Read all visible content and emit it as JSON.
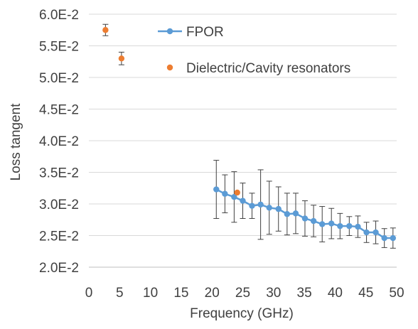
{
  "chart_data": {
    "type": "scatter",
    "title": "",
    "xlabel": "Frequency (GHz)",
    "ylabel": "Loss tangent",
    "xlim": [
      0,
      50
    ],
    "ylim": [
      0.02,
      0.06
    ],
    "x_ticks": [
      "0",
      "5",
      "10",
      "15",
      "20",
      "25",
      "30",
      "35",
      "40",
      "45",
      "50"
    ],
    "x_tick_values": [
      0,
      5,
      10,
      15,
      20,
      25,
      30,
      35,
      40,
      45,
      50
    ],
    "y_ticks": [
      "2.0E-2",
      "2.5E-2",
      "3.0E-2",
      "3.5E-2",
      "4.0E-2",
      "4.5E-2",
      "5.0E-2",
      "5.5E-2",
      "6.0E-2"
    ],
    "y_tick_values": [
      0.02,
      0.025,
      0.03,
      0.035,
      0.04,
      0.045,
      0.05,
      0.055,
      0.06
    ],
    "grid": "horizontal",
    "legend_position": "top-right",
    "series": [
      {
        "name": "FPOR",
        "style": "line-marker",
        "color": "#5B9BD5",
        "x": [
          20.7,
          22.1,
          23.6,
          25.0,
          26.5,
          27.9,
          29.3,
          30.8,
          32.2,
          33.6,
          35.1,
          36.5,
          37.9,
          39.4,
          40.8,
          42.3,
          43.7,
          45.1,
          46.6,
          48.0,
          49.4
        ],
        "y": [
          0.0323,
          0.0316,
          0.0311,
          0.0305,
          0.0297,
          0.0299,
          0.0294,
          0.0292,
          0.0284,
          0.0285,
          0.0277,
          0.0273,
          0.0268,
          0.0269,
          0.0265,
          0.0265,
          0.0264,
          0.0255,
          0.0255,
          0.0246,
          0.0246
        ],
        "err": [
          0.0046,
          0.003,
          0.004,
          0.0028,
          0.002,
          0.0055,
          0.0042,
          0.0035,
          0.0033,
          0.0032,
          0.0028,
          0.0025,
          0.0028,
          0.0024,
          0.002,
          0.0015,
          0.0017,
          0.0016,
          0.0018,
          0.0015,
          0.0016
        ]
      },
      {
        "name": "Dielectric/Cavity resonators",
        "style": "marker",
        "color": "#ED7D31",
        "x": [
          2.7,
          5.3,
          24.1
        ],
        "y": [
          0.0575,
          0.053,
          0.0318
        ],
        "err": [
          0.0009,
          0.001,
          0.0
        ]
      }
    ]
  }
}
